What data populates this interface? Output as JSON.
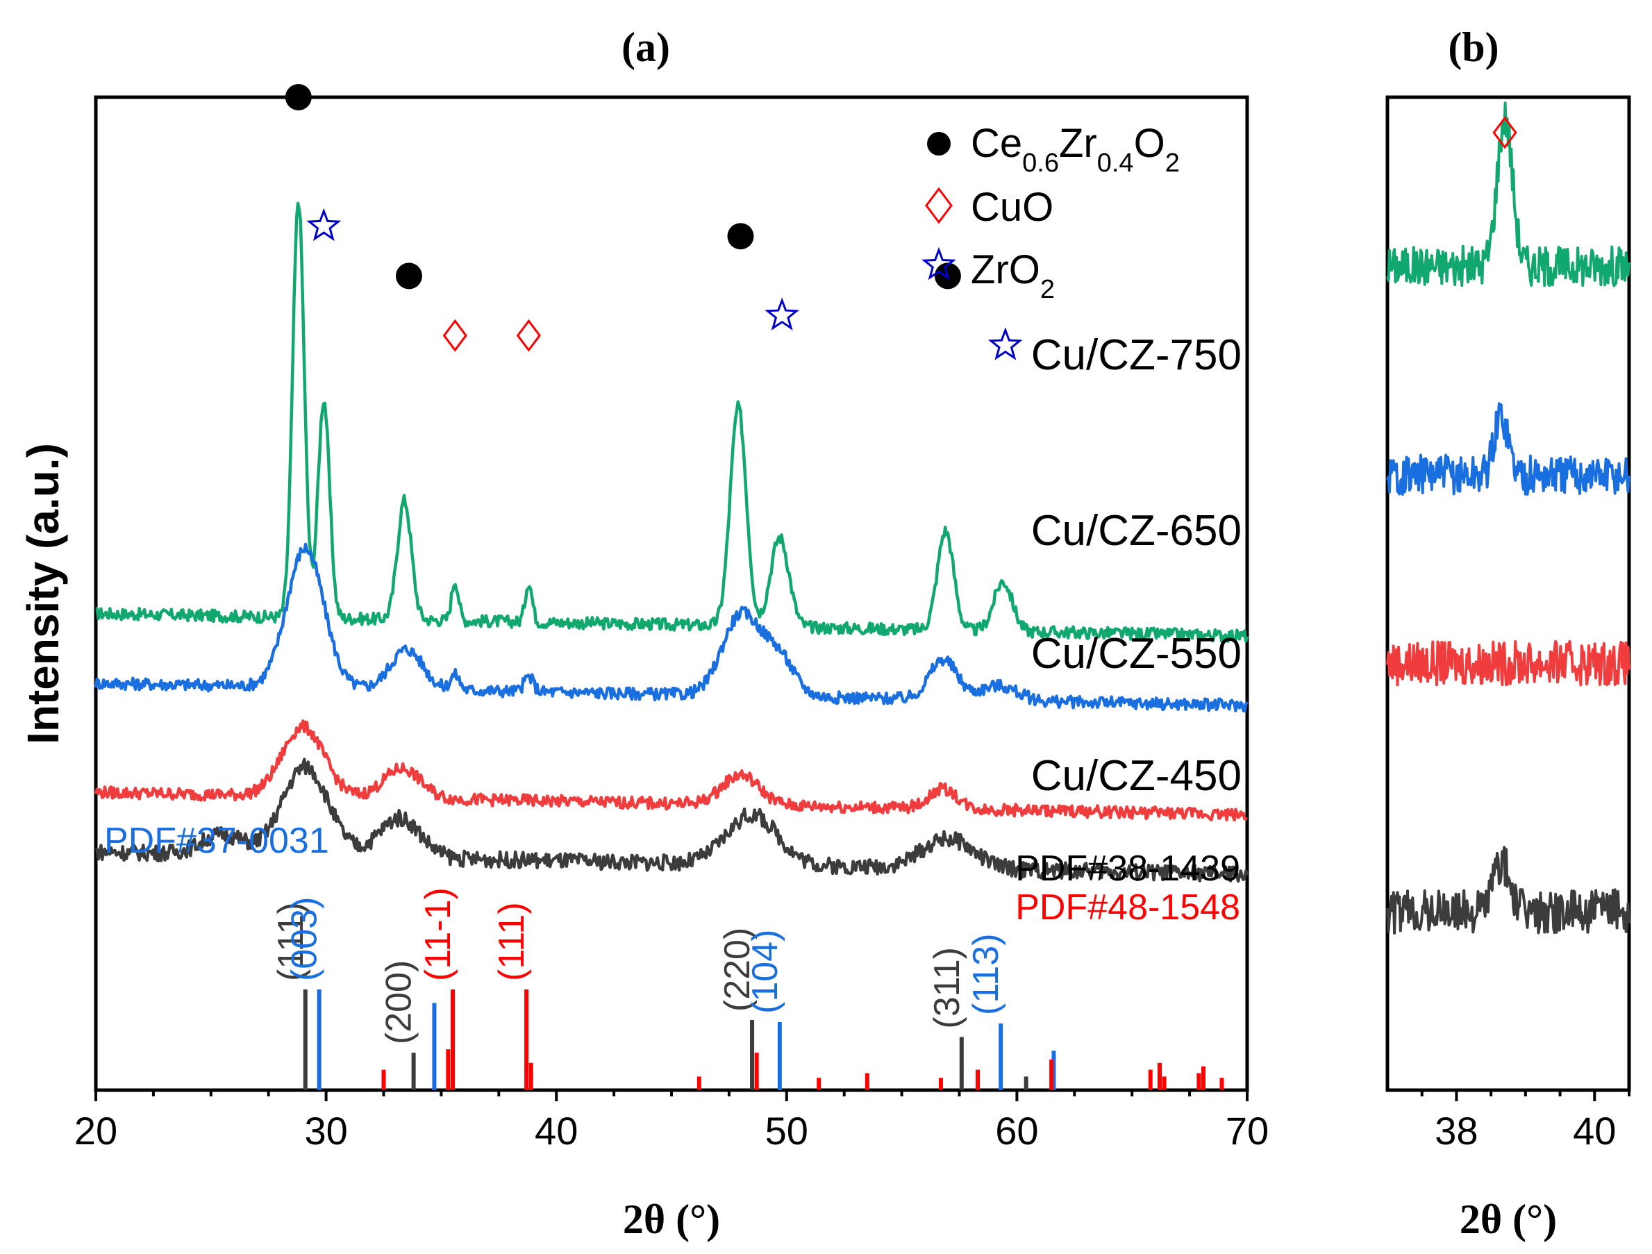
{
  "chart_data": [
    {
      "type": "line",
      "panel": "(a)",
      "xlabel": "2θ (°)",
      "ylabel": "Intensity (a.u.)",
      "xlim": [
        20,
        70
      ],
      "xticks": [
        "20",
        "30",
        "40",
        "50",
        "60",
        "70"
      ],
      "legend": [
        {
          "marker": "filled-circle",
          "color": "#000000",
          "label_parts": [
            "Ce",
            "0.6",
            "Zr",
            "0.4",
            "O",
            "2"
          ]
        },
        {
          "marker": "diamond",
          "color": "#ff0000",
          "label": "CuO"
        },
        {
          "marker": "star",
          "color": "#0000cc",
          "label_parts": [
            "ZrO",
            "2"
          ]
        }
      ],
      "series": [
        {
          "name": "Cu/CZ-750",
          "color": "#11a870",
          "baseline": 0.48,
          "noise": 0.006,
          "peaks": [
            [
              28.8,
              0.42,
              0.25
            ],
            [
              29.9,
              0.22,
              0.25
            ],
            [
              33.4,
              0.12,
              0.3
            ],
            [
              35.6,
              0.04,
              0.15
            ],
            [
              38.8,
              0.04,
              0.15
            ],
            [
              47.9,
              0.22,
              0.35
            ],
            [
              49.7,
              0.09,
              0.4
            ],
            [
              56.9,
              0.1,
              0.35
            ],
            [
              59.4,
              0.05,
              0.4
            ]
          ]
        },
        {
          "name": "Cu/CZ-650",
          "color": "#1a6fe0",
          "baseline": 0.41,
          "noise": 0.006,
          "peaks": [
            [
              29.1,
              0.14,
              0.8
            ],
            [
              33.5,
              0.04,
              0.7
            ],
            [
              35.6,
              0.015,
              0.2
            ],
            [
              38.8,
              0.015,
              0.2
            ],
            [
              48.0,
              0.08,
              0.8
            ],
            [
              49.6,
              0.04,
              0.7
            ],
            [
              56.8,
              0.04,
              0.6
            ],
            [
              59.2,
              0.015,
              0.8
            ]
          ]
        },
        {
          "name": "Cu/CZ-550",
          "color": "#f03c3c",
          "baseline": 0.3,
          "noise": 0.006,
          "peaks": [
            [
              29.0,
              0.07,
              0.9
            ],
            [
              33.3,
              0.03,
              0.8
            ],
            [
              48.0,
              0.03,
              0.8
            ],
            [
              56.8,
              0.02,
              0.6
            ]
          ]
        },
        {
          "name": "Cu/CZ-450",
          "color": "#3c3c3c",
          "baseline": 0.24,
          "noise": 0.008,
          "peaks": [
            [
              25.5,
              0.02,
              0.9
            ],
            [
              29.1,
              0.09,
              1.0
            ],
            [
              33.2,
              0.04,
              0.9
            ],
            [
              48.5,
              0.05,
              1.1
            ],
            [
              57.0,
              0.03,
              1.1
            ]
          ]
        }
      ],
      "markers": [
        {
          "type": "filled-circle",
          "x": 28.8,
          "y": 1.0
        },
        {
          "type": "star",
          "x": 29.9,
          "y": 0.87
        },
        {
          "type": "filled-circle",
          "x": 33.6,
          "y": 0.82
        },
        {
          "type": "diamond",
          "x": 35.6,
          "y": 0.76
        },
        {
          "type": "diamond",
          "x": 38.8,
          "y": 0.76
        },
        {
          "type": "filled-circle",
          "x": 48.0,
          "y": 0.86
        },
        {
          "type": "star",
          "x": 49.8,
          "y": 0.78
        },
        {
          "type": "filled-circle",
          "x": 57.0,
          "y": 0.82
        },
        {
          "type": "star",
          "x": 59.5,
          "y": 0.75
        }
      ],
      "reference_patterns": [
        {
          "name": "PDF#38-1439",
          "color": "#3c3c3c",
          "lines": [
            [
              29.1,
              0.148
            ],
            [
              33.8,
              0.055
            ],
            [
              48.5,
              0.103
            ],
            [
              57.6,
              0.078
            ],
            [
              60.4,
              0.02
            ]
          ],
          "hkl": [
            {
              "x": 29.1,
              "label": "(111)"
            },
            {
              "x": 33.8,
              "label": "(200)"
            },
            {
              "x": 48.5,
              "label": "(220)"
            },
            {
              "x": 57.6,
              "label": "(311)"
            }
          ]
        },
        {
          "name": "PDF#37-0031",
          "color": "#1a6fe0",
          "lines": [
            [
              29.7,
              0.148
            ],
            [
              34.7,
              0.128
            ],
            [
              49.7,
              0.1
            ],
            [
              59.3,
              0.098
            ],
            [
              61.6,
              0.058
            ]
          ],
          "hkl": [
            {
              "x": 29.7,
              "label": "(003)"
            },
            {
              "x": 49.7,
              "label": "(104)"
            },
            {
              "x": 59.3,
              "label": "(113)"
            }
          ]
        },
        {
          "name": "PDF#48-1548",
          "color": "#ff0000",
          "lines": [
            [
              32.5,
              0.03
            ],
            [
              35.5,
              0.148
            ],
            [
              35.3,
              0.06
            ],
            [
              38.7,
              0.148
            ],
            [
              38.9,
              0.04
            ],
            [
              46.2,
              0.02
            ],
            [
              48.7,
              0.055
            ],
            [
              51.4,
              0.018
            ],
            [
              53.5,
              0.025
            ],
            [
              56.7,
              0.018
            ],
            [
              58.3,
              0.03
            ],
            [
              61.5,
              0.045
            ],
            [
              65.8,
              0.03
            ],
            [
              66.2,
              0.04
            ],
            [
              66.4,
              0.02
            ],
            [
              67.9,
              0.025
            ],
            [
              68.1,
              0.035
            ],
            [
              68.9,
              0.018
            ]
          ],
          "hkl": [
            {
              "x": 35.5,
              "label": "(11-1)"
            },
            {
              "x": 38.7,
              "label": "(111)"
            }
          ]
        }
      ]
    },
    {
      "type": "line",
      "panel": "(b)",
      "xlabel": "2θ (°)",
      "xlim": [
        37.0,
        40.5
      ],
      "xticks": [
        "38",
        "40"
      ],
      "markers": [
        {
          "type": "diamond",
          "x": 38.7
        }
      ],
      "series": [
        {
          "name": "Cu/CZ-750",
          "color": "#11a870",
          "baseline": 0.83,
          "noise": 0.02,
          "peaks": [
            [
              38.7,
              0.15,
              0.11
            ]
          ]
        },
        {
          "name": "Cu/CZ-650",
          "color": "#1a6fe0",
          "baseline": 0.62,
          "noise": 0.02,
          "peaks": [
            [
              38.65,
              0.06,
              0.1
            ]
          ]
        },
        {
          "name": "Cu/CZ-550",
          "color": "#f03c3c",
          "baseline": 0.43,
          "noise": 0.022,
          "peaks": []
        },
        {
          "name": "Cu/CZ-450",
          "color": "#3c3c3c",
          "baseline": 0.18,
          "noise": 0.022,
          "peaks": [
            [
              38.65,
              0.05,
              0.12
            ]
          ]
        }
      ]
    }
  ]
}
